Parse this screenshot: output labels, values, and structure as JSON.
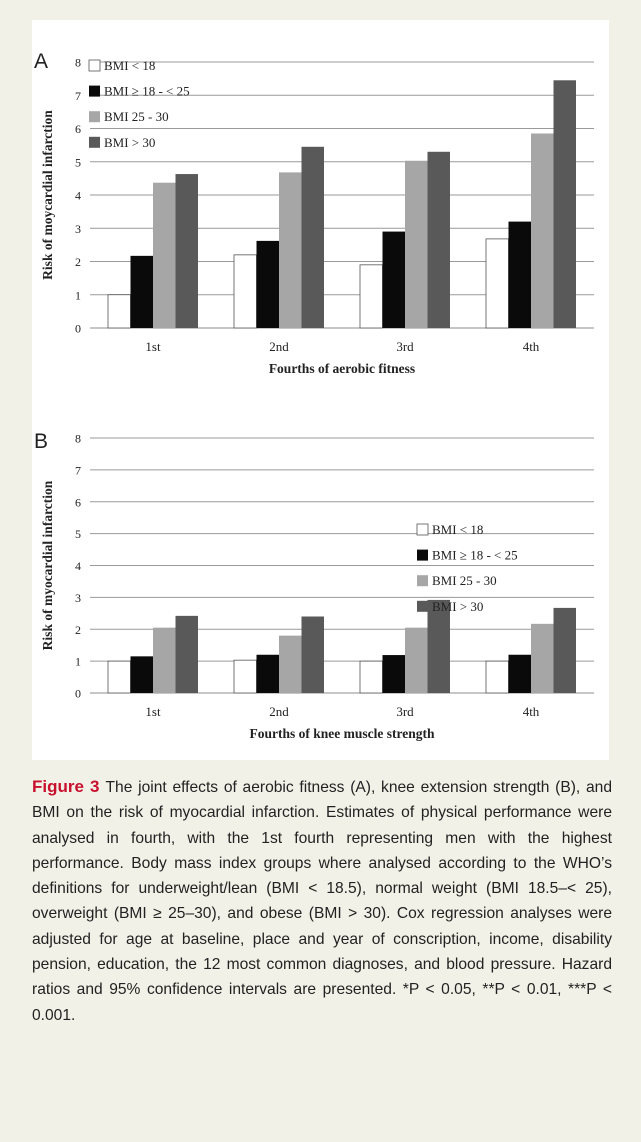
{
  "chart_data": [
    {
      "type": "bar",
      "panel_label": "A",
      "categories": [
        "1st",
        "2nd",
        "3rd",
        "4th"
      ],
      "series": [
        {
          "name": "BMI < 18",
          "values": [
            1.0,
            2.2,
            1.9,
            2.68
          ]
        },
        {
          "name": "BMI ≥ 18 - < 25",
          "values": [
            2.17,
            2.62,
            2.9,
            3.2
          ]
        },
        {
          "name": "BMI 25 - 30",
          "values": [
            4.37,
            4.68,
            5.03,
            5.85
          ]
        },
        {
          "name": "BMI > 30",
          "values": [
            4.63,
            5.45,
            5.3,
            7.45
          ]
        }
      ],
      "xlabel": "Fourths of aerobic fitness",
      "ylabel": "Risk of moycardial infarction",
      "ylim": [
        0,
        8
      ],
      "yticks": [
        "0",
        "1",
        "2",
        "3",
        "4",
        "5",
        "6",
        "7",
        "8"
      ],
      "grid": true,
      "legend_position": "top-left"
    },
    {
      "type": "bar",
      "panel_label": "B",
      "categories": [
        "1st",
        "2nd",
        "3rd",
        "4th"
      ],
      "series": [
        {
          "name": "BMI < 18",
          "values": [
            1.0,
            1.03,
            1.0,
            1.0
          ]
        },
        {
          "name": "BMI ≥ 18 - < 25",
          "values": [
            1.15,
            1.2,
            1.19,
            1.2
          ]
        },
        {
          "name": "BMI 25 - 30",
          "values": [
            2.05,
            1.8,
            2.05,
            2.17
          ]
        },
        {
          "name": "BMI > 30",
          "values": [
            2.42,
            2.4,
            2.92,
            2.67
          ]
        }
      ],
      "xlabel": "Fourths of knee muscle strength",
      "ylabel": "Risk of myocardial infarction",
      "ylim": [
        0,
        8
      ],
      "yticks": [
        "0",
        "1",
        "2",
        "3",
        "4",
        "5",
        "6",
        "7",
        "8"
      ],
      "grid": true,
      "legend_position": "right"
    }
  ],
  "series_colors": [
    "#ffffff",
    "#0a0a0a",
    "#a6a6a6",
    "#595959"
  ],
  "caption": {
    "label": "Figure 3",
    "text": "The joint effects of aerobic fitness (A), knee extension strength (B), and BMI on the risk of myocardial infarction. Estimates of physical performance were analysed in fourth, with the 1st fourth representing men with the highest performance. Body mass index groups where analysed according to the WHO’s definitions for underweight/lean (BMI < 18.5), normal weight (BMI 18.5–< 25), overweight (BMI ≥ 25–30), and obese (BMI > 30). Cox regression analyses were adjusted for age at baseline, place and year of conscription, income, disability pension, education, the 12 most common diagnoses, and blood pressure. Hazard ratios and 95% confidence intervals are presented. *P < 0.05, **P < 0.01, ***P < 0.001."
  }
}
